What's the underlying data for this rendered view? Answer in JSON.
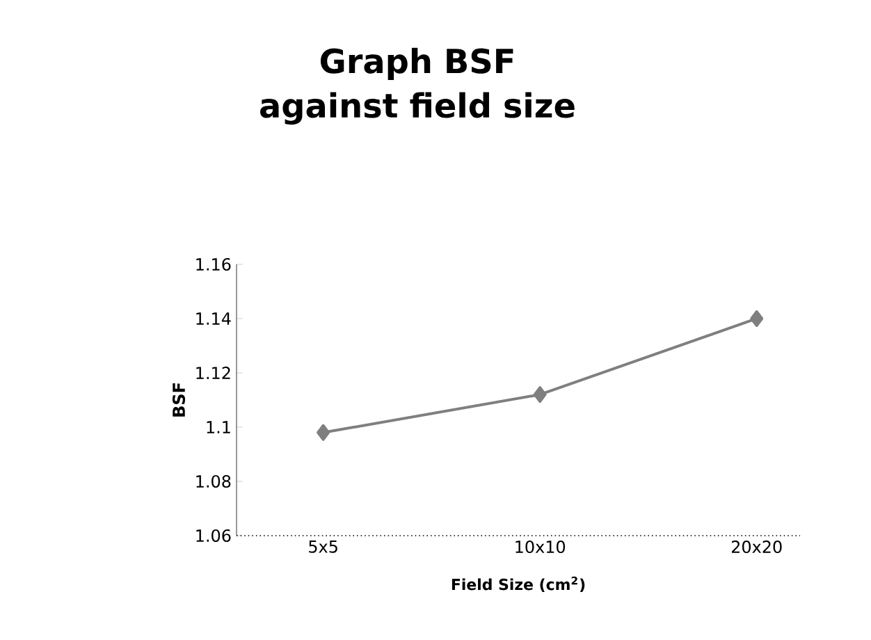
{
  "chart_data": {
    "type": "line",
    "title": "Graph BSF against field size",
    "xlabel": "Field Size (cm$^{2}$)",
    "ylabel": "BSF",
    "categories": [
      "5x5",
      "10x10",
      "20x20"
    ],
    "series": [
      {
        "color": "#7f7f7f",
        "values": [
          1.098,
          1.112,
          1.14
        ]
      }
    ],
    "ylim": [
      1.06,
      1.16
    ],
    "yticks": [
      1.06,
      1.08,
      1.1,
      1.12,
      1.14,
      1.16
    ],
    "marker": "diamond",
    "line_style": "solid",
    "grid": false
  }
}
